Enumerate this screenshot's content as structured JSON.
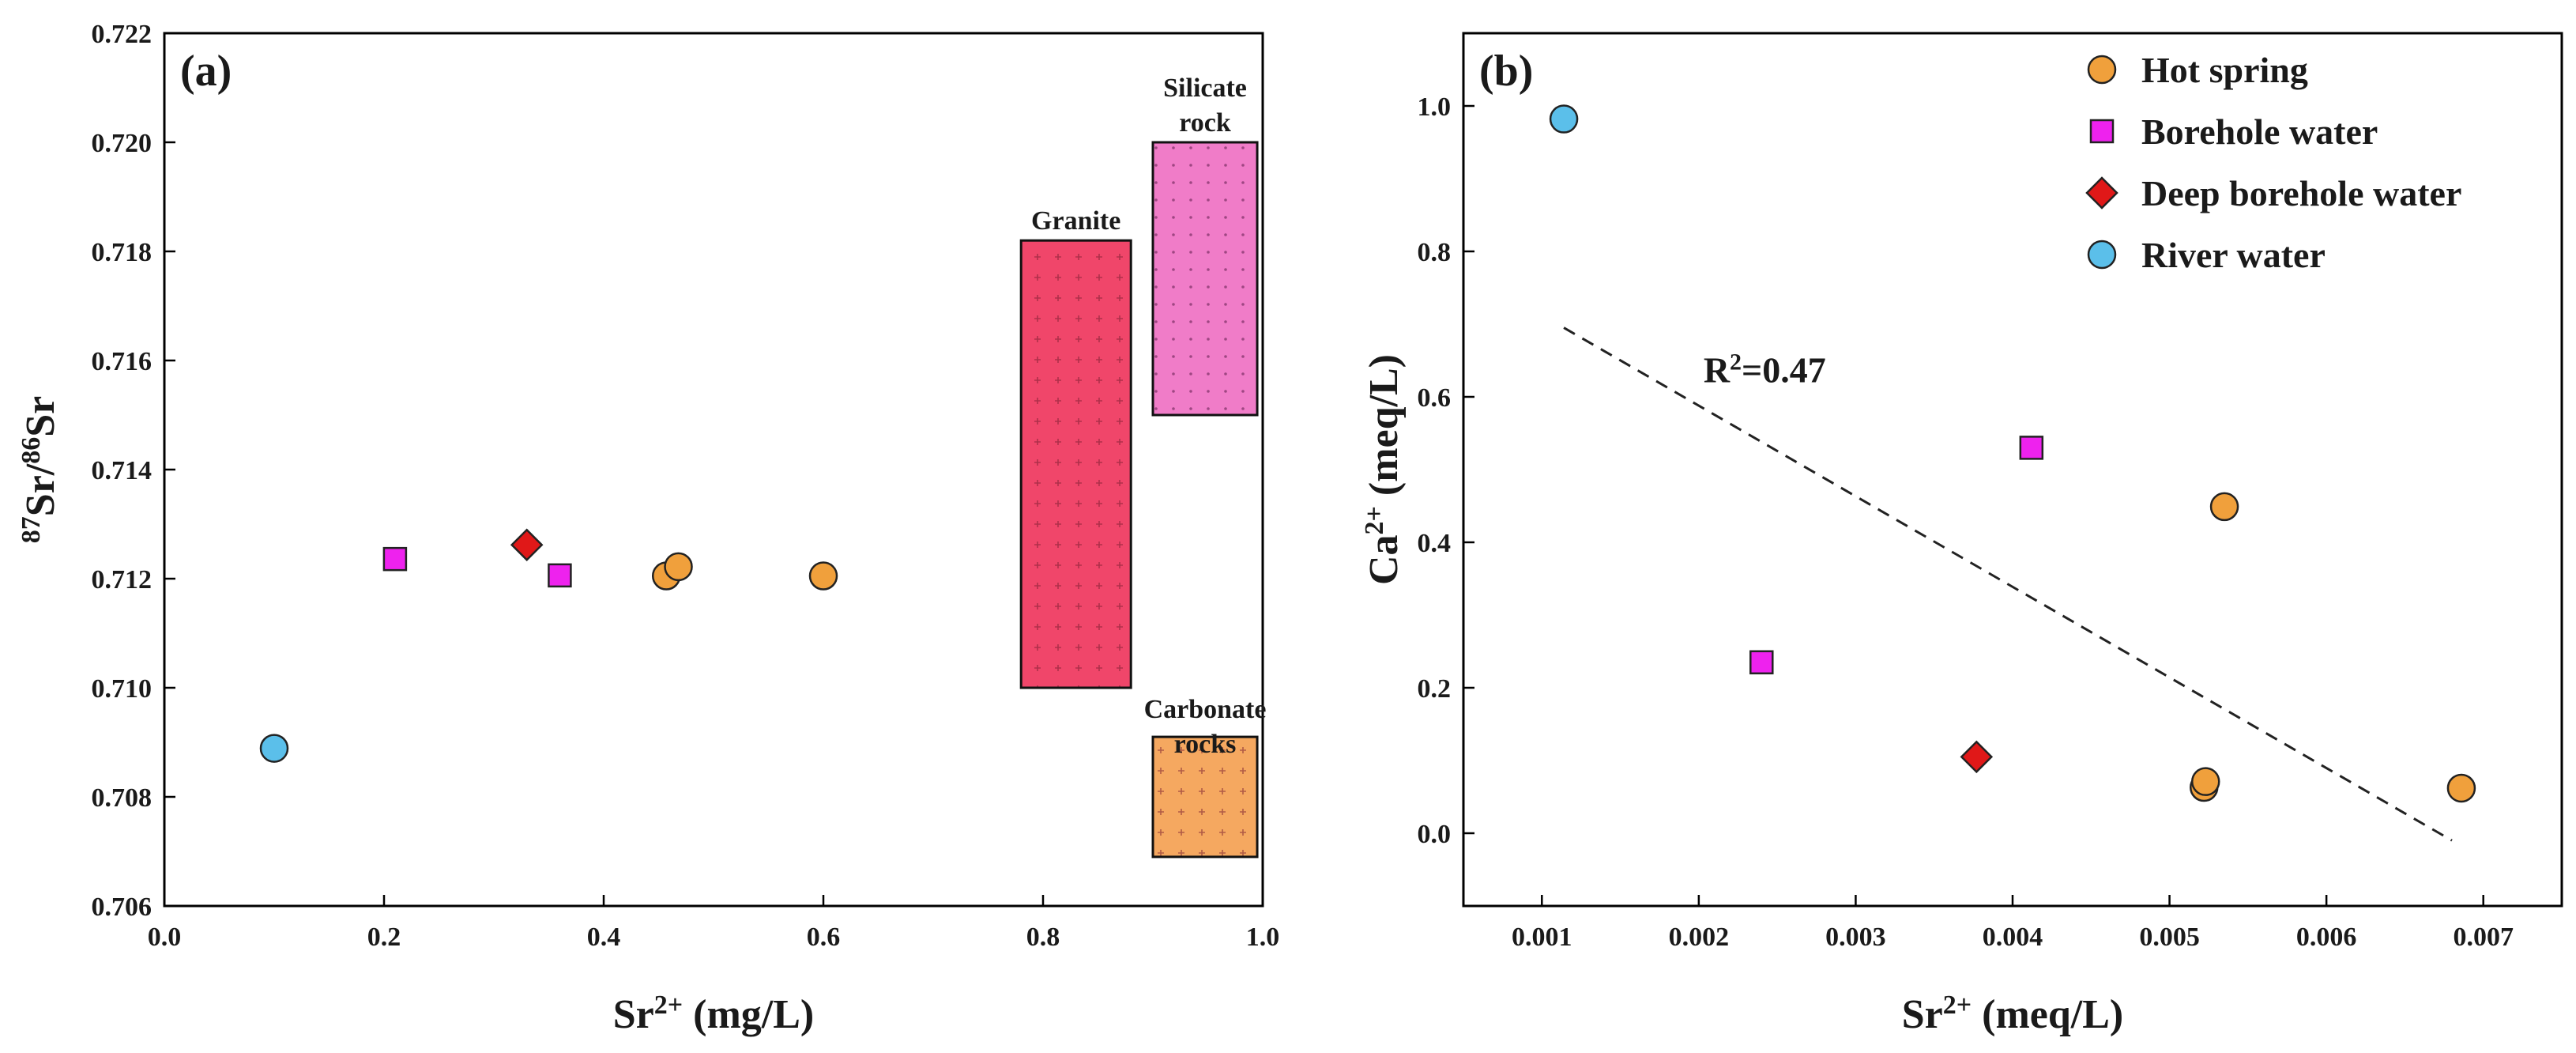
{
  "chart_data": [
    {
      "type": "scatter",
      "panel_label": "(a)",
      "xlabel": "Sr",
      "xlabel_sup": "2+",
      "xlabel_unit": " (mg/L)",
      "ylabel_pre1": "87",
      "ylabel_mid": "Sr/",
      "ylabel_pre2": "86",
      "ylabel_end": "Sr",
      "xlim": [
        0.0,
        1.0
      ],
      "ylim": [
        0.706,
        0.722
      ],
      "xticks": [
        "0.0",
        "0.2",
        "0.4",
        "0.6",
        "0.8",
        "1.0"
      ],
      "yticks": [
        "0.706",
        "0.708",
        "0.710",
        "0.712",
        "0.714",
        "0.716",
        "0.718",
        "0.720",
        "0.722"
      ],
      "series": [
        {
          "name": "Hot spring",
          "marker": "circle",
          "color": "#f0a03c",
          "points": [
            [
              0.457,
              0.71205
            ],
            [
              0.468,
              0.71222
            ],
            [
              0.6,
              0.71205
            ]
          ]
        },
        {
          "name": "Borehole water",
          "marker": "square",
          "color": "#ee22ee",
          "points": [
            [
              0.21,
              0.71236
            ],
            [
              0.36,
              0.71206
            ]
          ]
        },
        {
          "name": "Deep borehole water",
          "marker": "diamond",
          "color": "#e01818",
          "points": [
            [
              0.33,
              0.71262
            ]
          ]
        },
        {
          "name": "River water",
          "marker": "circle",
          "color": "#5bbfea",
          "points": [
            [
              0.1,
              0.70889
            ]
          ]
        }
      ],
      "regions": [
        {
          "name": "Granite",
          "label_lines": [
            "Granite"
          ],
          "x": [
            0.78,
            0.88
          ],
          "y": [
            0.71,
            0.7182
          ],
          "color": "#f0466a",
          "pattern": "plus"
        },
        {
          "name": "Silicate rock",
          "label_lines": [
            "Silicate",
            "rock"
          ],
          "x": [
            0.9,
            0.995
          ],
          "y": [
            0.715,
            0.72
          ],
          "color": "#f07cc8",
          "pattern": "dot"
        },
        {
          "name": "Carbonate rocks",
          "label_lines": [
            "Carbonate",
            "rocks"
          ],
          "x": [
            0.9,
            0.995
          ],
          "y": [
            0.7069,
            0.7091
          ],
          "color": "#f5a860",
          "pattern": "plus"
        }
      ]
    },
    {
      "type": "scatter",
      "panel_label": "(b)",
      "xlabel": "Sr",
      "xlabel_sup": "2+",
      "xlabel_unit": " (meq/L)",
      "ylabel": "Ca",
      "ylabel_sup": "2+",
      "ylabel_unit": " (meq/L)",
      "xlim": [
        0.0005,
        0.0075
      ],
      "ylim": [
        -0.1,
        1.1
      ],
      "xticks": [
        "0.001",
        "0.002",
        "0.003",
        "0.004",
        "0.005",
        "0.006",
        "0.007"
      ],
      "yticks": [
        "0.0",
        "0.2",
        "0.4",
        "0.6",
        "0.8",
        "1.0"
      ],
      "series": [
        {
          "name": "Hot spring",
          "marker": "circle",
          "color": "#f0a03c",
          "points": [
            [
              0.00535,
              0.449
            ],
            [
              0.00522,
              0.063
            ],
            [
              0.00523,
              0.071
            ],
            [
              0.00686,
              0.062
            ]
          ]
        },
        {
          "name": "Borehole water",
          "marker": "square",
          "color": "#ee22ee",
          "points": [
            [
              0.00412,
              0.53
            ],
            [
              0.0024,
              0.235
            ]
          ]
        },
        {
          "name": "Deep borehole water",
          "marker": "diamond",
          "color": "#e01818",
          "points": [
            [
              0.00377,
              0.105
            ]
          ]
        },
        {
          "name": "River water",
          "marker": "circle",
          "color": "#5bbfea",
          "points": [
            [
              0.00114,
              0.982
            ]
          ]
        }
      ],
      "trendline": {
        "x": [
          0.00114,
          0.0068
        ],
        "y": [
          0.695,
          -0.01
        ],
        "style": "dashed"
      },
      "annotation": {
        "text_main": "R",
        "text_sup": "2",
        "text_val": "=0.47",
        "x": 0.00203,
        "y": 0.62
      },
      "legend": {
        "position": "top-right",
        "entries": [
          {
            "label": "Hot spring",
            "marker": "circle",
            "color": "#f0a03c"
          },
          {
            "label": "Borehole water",
            "marker": "square",
            "color": "#ee22ee"
          },
          {
            "label": "Deep borehole water",
            "marker": "diamond",
            "color": "#e01818"
          },
          {
            "label": "River water",
            "marker": "circle",
            "color": "#5bbfea"
          }
        ]
      }
    }
  ]
}
